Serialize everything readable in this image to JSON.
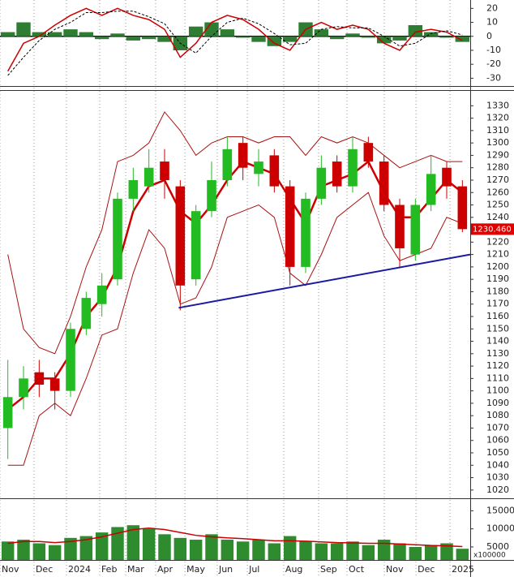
{
  "chart_data": [
    {
      "type": "macd",
      "ylim": [
        -35,
        26
      ],
      "yticks": [
        20,
        10,
        0,
        -10,
        -20,
        -30
      ],
      "histogram": {
        "color": "#2e7d32",
        "values": [
          3,
          10,
          3,
          3,
          5,
          3,
          -2,
          2,
          -3,
          -2,
          -4,
          -10,
          7,
          10,
          5,
          -1,
          -4,
          -7,
          -4,
          10,
          5,
          -2,
          2,
          -1,
          -5,
          -3,
          8,
          3,
          -1,
          -4
        ]
      },
      "series": [
        {
          "color": "#cc0000",
          "style": "solid",
          "values": [
            -25,
            -5,
            0,
            8,
            15,
            20,
            15,
            20,
            15,
            12,
            5,
            -15,
            -5,
            10,
            15,
            12,
            5,
            -5,
            -10,
            5,
            10,
            5,
            8,
            5,
            -5,
            -10,
            3,
            5,
            3,
            -3
          ]
        },
        {
          "color": "#000000",
          "style": "dashed",
          "values": [
            -28,
            -15,
            -3,
            5,
            10,
            17,
            17,
            18,
            18,
            14,
            9,
            -5,
            -12,
            0,
            10,
            13,
            9,
            2,
            -6,
            -5,
            5,
            7,
            6,
            6,
            0,
            -7,
            -5,
            2,
            4,
            1
          ]
        }
      ]
    },
    {
      "type": "candlestick",
      "ylim": [
        1014,
        1342
      ],
      "yticks": [
        1020,
        1030,
        1040,
        1050,
        1060,
        1070,
        1080,
        1090,
        1100,
        1110,
        1120,
        1130,
        1140,
        1150,
        1160,
        1170,
        1180,
        1190,
        1200,
        1210,
        1220,
        1230,
        1240,
        1250,
        1260,
        1270,
        1280,
        1290,
        1300,
        1310,
        1320,
        1330
      ],
      "up_color": "#22bb22",
      "down_color": "#cc0000",
      "open": [
        1070,
        1095,
        1115,
        1110,
        1100,
        1150,
        1170,
        1190,
        1255,
        1265,
        1285,
        1265,
        1190,
        1245,
        1270,
        1300,
        1275,
        1290,
        1265,
        1200,
        1255,
        1285,
        1265,
        1300,
        1285,
        1250,
        1210,
        1250,
        1280,
        1265
      ],
      "high": [
        1125,
        1120,
        1125,
        1115,
        1155,
        1180,
        1195,
        1260,
        1280,
        1295,
        1295,
        1270,
        1250,
        1285,
        1305,
        1305,
        1295,
        1295,
        1270,
        1260,
        1290,
        1290,
        1305,
        1305,
        1290,
        1255,
        1255,
        1290,
        1285,
        1270
      ],
      "low": [
        1045,
        1085,
        1095,
        1085,
        1095,
        1145,
        1160,
        1185,
        1245,
        1260,
        1255,
        1165,
        1185,
        1240,
        1265,
        1270,
        1265,
        1260,
        1185,
        1195,
        1250,
        1260,
        1260,
        1280,
        1245,
        1200,
        1205,
        1245,
        1255,
        1228
      ],
      "close": [
        1095,
        1110,
        1105,
        1100,
        1150,
        1175,
        1185,
        1255,
        1270,
        1280,
        1270,
        1185,
        1245,
        1270,
        1295,
        1280,
        1285,
        1265,
        1200,
        1255,
        1280,
        1265,
        1295,
        1285,
        1250,
        1215,
        1250,
        1275,
        1265,
        1230.46
      ],
      "series": [
        {
          "color": "#aa1111",
          "width": 1,
          "values": [
            1210,
            1150,
            1135,
            1130,
            1160,
            1200,
            1230,
            1285,
            1290,
            1300,
            1325,
            1310,
            1290,
            1300,
            1305,
            1305,
            1300,
            1305,
            1305,
            1290,
            1305,
            1300,
            1305,
            1300,
            1290,
            1280,
            1285,
            1290,
            1285,
            1285
          ]
        },
        {
          "color": "#aa1111",
          "width": 1,
          "values": [
            1040,
            1040,
            1080,
            1090,
            1080,
            1110,
            1145,
            1150,
            1195,
            1230,
            1215,
            1170,
            1175,
            1200,
            1240,
            1245,
            1250,
            1240,
            1195,
            1185,
            1210,
            1240,
            1250,
            1260,
            1225,
            1205,
            1210,
            1215,
            1240,
            1235
          ]
        },
        {
          "color": "#cc0000",
          "width": 2.5,
          "values": [
            1085,
            1095,
            1110,
            1110,
            1130,
            1160,
            1175,
            1200,
            1245,
            1265,
            1270,
            1245,
            1235,
            1250,
            1270,
            1285,
            1280,
            1275,
            1255,
            1235,
            1265,
            1270,
            1275,
            1285,
            1260,
            1240,
            1240,
            1255,
            1270,
            1260
          ]
        }
      ],
      "trendline": {
        "color": "#1a1aa0",
        "x": [
          10.9,
          29.5
        ],
        "values": [
          1167,
          1210
        ]
      },
      "last_label": "1230.460"
    },
    {
      "type": "volume",
      "ylim": [
        1400,
        18000
      ],
      "yticks": [
        15000,
        10000,
        5000
      ],
      "unit_label": "x100000",
      "color": "#2e8b2e",
      "values": [
        6500,
        7000,
        6000,
        5500,
        7500,
        8000,
        9000,
        10500,
        11000,
        10000,
        8500,
        7500,
        7000,
        8500,
        7000,
        6500,
        7000,
        6000,
        8000,
        6500,
        6000,
        6000,
        6500,
        5500,
        7000,
        6000,
        5000,
        5500,
        6000,
        4500
      ],
      "series": [
        {
          "color": "#cc0000",
          "values": [
            6000,
            6500,
            6500,
            6200,
            6500,
            7000,
            7800,
            8800,
            9800,
            10200,
            9800,
            9000,
            8200,
            7800,
            7500,
            7300,
            7000,
            6700,
            6700,
            6600,
            6400,
            6200,
            6100,
            6000,
            6000,
            5800,
            5600,
            5400,
            5300,
            5100
          ]
        }
      ],
      "xlim": [
        -0.5,
        29.5
      ],
      "xticks": [
        {
          "value": -0.5,
          "label": "Nov"
        },
        {
          "value": 1.67,
          "label": "Dec"
        },
        {
          "value": 3.74,
          "label": "2024"
        },
        {
          "value": 5.86,
          "label": "Feb"
        },
        {
          "value": 7.52,
          "label": "Mar"
        },
        {
          "value": 9.43,
          "label": "Apr"
        },
        {
          "value": 11.3,
          "label": "May"
        },
        {
          "value": 13.36,
          "label": "Jun"
        },
        {
          "value": 15.28,
          "label": "Jul"
        },
        {
          "value": 17.6,
          "label": "Aug"
        },
        {
          "value": 19.83,
          "label": "Sep"
        },
        {
          "value": 21.64,
          "label": "Oct"
        },
        {
          "value": 24.02,
          "label": "Nov"
        },
        {
          "value": 26.04,
          "label": "Dec"
        },
        {
          "value": 28.21,
          "label": "2025"
        }
      ]
    }
  ]
}
